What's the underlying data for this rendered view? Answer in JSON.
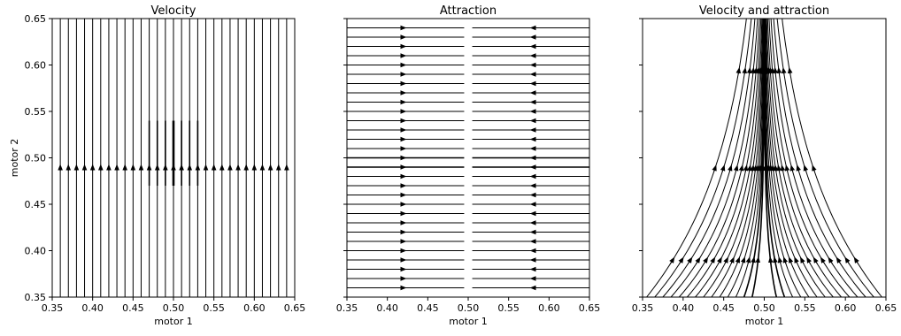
{
  "chart_data": [
    {
      "type": "streamplot",
      "title": "Velocity",
      "xlabel": "motor 1",
      "ylabel": "motor 2",
      "xlim": [
        0.35,
        0.65
      ],
      "ylim": [
        0.35,
        0.65
      ],
      "xticks": [
        "0.35",
        "0.40",
        "0.45",
        "0.50",
        "0.55",
        "0.60",
        "0.65"
      ],
      "yticks": [
        "0.35",
        "0.40",
        "0.45",
        "0.50",
        "0.55",
        "0.60",
        "0.65"
      ],
      "show_ytick_labels": true,
      "field": "vertical flow upward; streamlines thicken near motor 1 = 0.50 between motor 2 ≈ 0.47 and 0.54",
      "line_x": [
        0.36,
        0.37,
        0.38,
        0.39,
        0.4,
        0.41,
        0.42,
        0.43,
        0.44,
        0.45,
        0.46,
        0.47,
        0.48,
        0.49,
        0.5,
        0.51,
        0.52,
        0.53,
        0.54,
        0.55,
        0.56,
        0.57,
        0.58,
        0.59,
        0.6,
        0.61,
        0.62,
        0.63,
        0.64
      ],
      "arrow_y": 0.49
    },
    {
      "type": "streamplot",
      "title": "Attraction",
      "xlabel": "motor 1",
      "ylabel": "",
      "xlim": [
        0.35,
        0.65
      ],
      "ylim": [
        0.35,
        0.65
      ],
      "xticks": [
        "0.35",
        "0.40",
        "0.45",
        "0.50",
        "0.55",
        "0.60",
        "0.65"
      ],
      "yticks": [
        "0.35",
        "0.40",
        "0.45",
        "0.50",
        "0.55",
        "0.60",
        "0.65"
      ],
      "show_ytick_labels": false,
      "field": "horizontal flow converging toward motor 1 = 0.50",
      "line_y": [
        0.36,
        0.37,
        0.38,
        0.39,
        0.4,
        0.41,
        0.42,
        0.43,
        0.44,
        0.45,
        0.46,
        0.47,
        0.48,
        0.49,
        0.5,
        0.51,
        0.52,
        0.53,
        0.54,
        0.55,
        0.56,
        0.57,
        0.58,
        0.59,
        0.6,
        0.61,
        0.62,
        0.63,
        0.64
      ],
      "left_arrow_x": 0.42,
      "right_arrow_x": 0.58,
      "gap": [
        0.495,
        0.505
      ]
    },
    {
      "type": "streamplot",
      "title": "Velocity and attraction",
      "xlabel": "motor 1",
      "ylabel": "",
      "xlim": [
        0.35,
        0.65
      ],
      "ylim": [
        0.35,
        0.65
      ],
      "xticks": [
        "0.35",
        "0.40",
        "0.45",
        "0.50",
        "0.55",
        "0.60",
        "0.65"
      ],
      "yticks": [
        "0.35",
        "0.40",
        "0.45",
        "0.50",
        "0.55",
        "0.60",
        "0.65"
      ],
      "show_ytick_labels": false,
      "field": "upward flow converging toward motor 1 = 0.50 (hyperbolic funnel)",
      "start_x": [
        0.355,
        0.365,
        0.375,
        0.385,
        0.395,
        0.405,
        0.415,
        0.425,
        0.435,
        0.445,
        0.455,
        0.465,
        0.475,
        0.485,
        0.515,
        0.525,
        0.535,
        0.545,
        0.555,
        0.565,
        0.575,
        0.585,
        0.595,
        0.605,
        0.615,
        0.625,
        0.635,
        0.645
      ]
    }
  ]
}
